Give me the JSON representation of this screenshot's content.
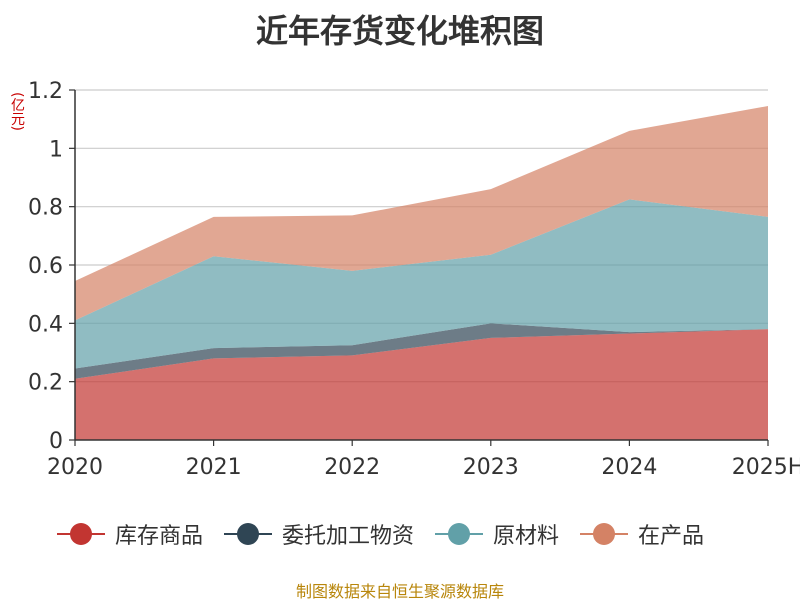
{
  "title": "近年存货变化堆积图",
  "source": "制图数据来自恒生聚源数据库",
  "chart_data": {
    "type": "area",
    "stacked": true,
    "title": "近年存货变化堆积图",
    "ylabel": "(亿元)",
    "xlabel": "",
    "categories": [
      "2020",
      "2021",
      "2022",
      "2023",
      "2024",
      "2025H"
    ],
    "ylim": [
      0,
      1.2
    ],
    "yticks": [
      "0",
      "0.2",
      "0.4",
      "0.6",
      "0.8",
      "1",
      "1.2"
    ],
    "grid": true,
    "legend_position": "bottom",
    "series": [
      {
        "name": "库存商品",
        "color": "#c23531",
        "values": [
          0.21,
          0.28,
          0.29,
          0.35,
          0.365,
          0.38
        ]
      },
      {
        "name": "委托加工物资",
        "color": "#2f4554",
        "values": [
          0.035,
          0.035,
          0.035,
          0.05,
          0.005,
          0.0
        ]
      },
      {
        "name": "原材料",
        "color": "#61a0a8",
        "values": [
          0.165,
          0.315,
          0.255,
          0.235,
          0.455,
          0.385
        ]
      },
      {
        "name": "在产品",
        "color": "#d48265",
        "values": [
          0.135,
          0.135,
          0.19,
          0.225,
          0.235,
          0.38
        ]
      }
    ]
  }
}
